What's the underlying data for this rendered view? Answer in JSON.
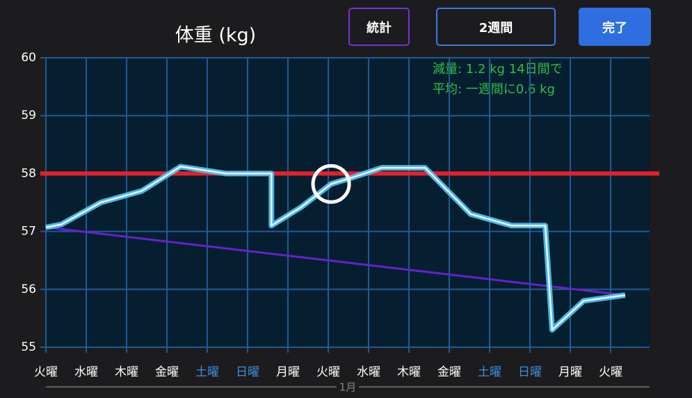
{
  "buttons": {
    "stats": "統計",
    "period": "2週間",
    "done": "完了"
  },
  "chart_data": {
    "type": "line",
    "title": "体重 (kg)",
    "annotations": [
      "減量: 1.2 kg 14日間で",
      "平均: 一週間に0.6 kg"
    ],
    "x_group_label": "1月",
    "xlim": [
      0,
      15
    ],
    "ylim": [
      55,
      60
    ],
    "xticks": [
      {
        "value": 0,
        "label": "火曜"
      },
      {
        "value": 1,
        "label": "水曜"
      },
      {
        "value": 2,
        "label": "木曜"
      },
      {
        "value": 3,
        "label": "金曜"
      },
      {
        "value": 4,
        "label": "土曜"
      },
      {
        "value": 5,
        "label": "日曜"
      },
      {
        "value": 6,
        "label": "月曜"
      },
      {
        "value": 7,
        "label": "火曜"
      },
      {
        "value": 8,
        "label": "水曜"
      },
      {
        "value": 9,
        "label": "木曜"
      },
      {
        "value": 10,
        "label": "金曜"
      },
      {
        "value": 11,
        "label": "土曜"
      },
      {
        "value": 12,
        "label": "日曜"
      },
      {
        "value": 13,
        "label": "月曜"
      },
      {
        "value": 14,
        "label": "火曜"
      }
    ],
    "yticks": [
      55,
      56,
      57,
      58,
      59,
      60
    ],
    "grid": true,
    "series": [
      {
        "color": "#4fc3f7",
        "x": [
          0,
          0.38,
          1.36,
          2.38,
          3.34,
          4.47,
          5.59,
          5.59,
          6.33,
          7.07,
          7.59,
          8.33,
          9.4,
          10.53,
          11.55,
          12.38,
          12.55,
          13.33,
          14.36
        ],
        "values": [
          57.07,
          57.12,
          57.5,
          57.7,
          58.12,
          58.0,
          58.0,
          57.1,
          57.42,
          57.82,
          57.93,
          58.1,
          58.1,
          57.3,
          57.1,
          57.1,
          55.3,
          55.8,
          55.9
        ]
      },
      {
        "color": "#6a1fd0",
        "x": [
          0,
          14.36
        ],
        "values": [
          57.07,
          55.9
        ]
      }
    ],
    "target": {
      "value": 58,
      "color": "#e8202a"
    }
  }
}
